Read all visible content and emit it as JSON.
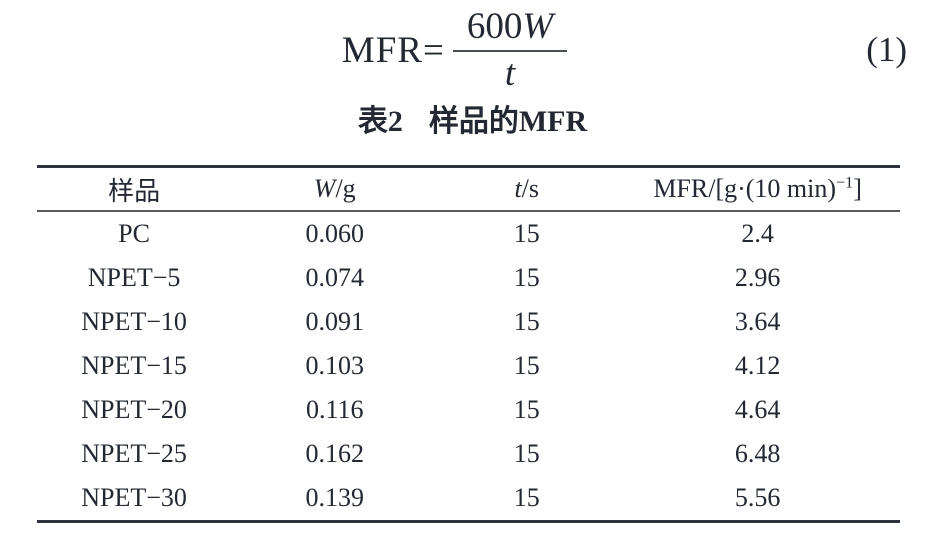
{
  "equation": {
    "lhs": "MFR=",
    "numerator_text": "600",
    "numerator_var": "W",
    "denominator_var": "t",
    "number": "(1)"
  },
  "table_title": {
    "label": "表2",
    "text": "样品的MFR"
  },
  "table": {
    "headers": {
      "sample": "样品",
      "w_var": "W",
      "w_unit": "/g",
      "t_var": "t",
      "t_unit": "/s",
      "mfr_prefix": "MFR/[g·(10 min)",
      "mfr_sup": "−1",
      "mfr_suffix": "]"
    },
    "rows": [
      {
        "sample": "PC",
        "w": "0.060",
        "t": "15",
        "mfr": "2.4"
      },
      {
        "sample": "NPET−5",
        "w": "0.074",
        "t": "15",
        "mfr": "2.96"
      },
      {
        "sample": "NPET−10",
        "w": "0.091",
        "t": "15",
        "mfr": "3.64"
      },
      {
        "sample": "NPET−15",
        "w": "0.103",
        "t": "15",
        "mfr": "4.12"
      },
      {
        "sample": "NPET−20",
        "w": "0.116",
        "t": "15",
        "mfr": "4.64"
      },
      {
        "sample": "NPET−25",
        "w": "0.162",
        "t": "15",
        "mfr": "6.48"
      },
      {
        "sample": "NPET−30",
        "w": "0.139",
        "t": "15",
        "mfr": "5.56"
      }
    ]
  },
  "colors": {
    "text": "#232832",
    "rule_thick": "#2e333b",
    "rule_thin": "#565b63",
    "background": "#ffffff"
  }
}
